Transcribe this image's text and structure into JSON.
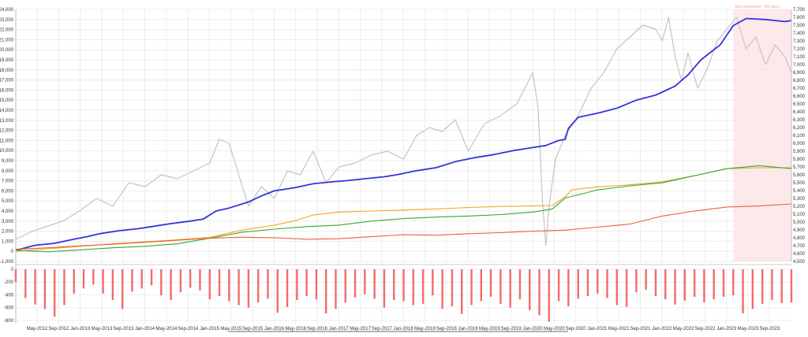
{
  "chart_data": [
    {
      "type": "line",
      "title": "",
      "xlabel": "",
      "ylabel": "",
      "x_tick_labels": [
        "May-2012",
        "Sep-2012",
        "Jan-2013",
        "May-2013",
        "Sep-2013",
        "Jan-2014",
        "May-2014",
        "Sep-2014",
        "Jan-2015",
        "May-2015",
        "Sep-2015",
        "Jan-2016",
        "May-2016",
        "Sep-2016",
        "Jan-2017",
        "May-2017",
        "Sep-2017",
        "Jan-2018",
        "May-2018",
        "Sep-2018",
        "Jan-2019",
        "May-2019",
        "Sep-2019",
        "Jan-2020",
        "May-2020",
        "Sep-2020",
        "Jan-2021",
        "May-2021",
        "Sep-2021",
        "Jan-2022",
        "May-2022",
        "Sep-2022",
        "Jan-2023",
        "May-2023",
        "Sep-2023"
      ],
      "y_left_ticks": [
        "-1,000",
        "0",
        "1,000",
        "2,000",
        "3,000",
        "4,000",
        "5,000",
        "6,000",
        "7,000",
        "8,000",
        "9,000",
        "10,000",
        "11,000",
        "12,000",
        "13,000",
        "14,000",
        "15,000",
        "16,000",
        "17,000",
        "18,000",
        "19,000",
        "20,000",
        "21,000",
        "22,000",
        "23,000",
        "24,000"
      ],
      "y_right_ticks": [
        "4,500",
        "4,600",
        "4,700",
        "4,800",
        "4,900",
        "5,000",
        "5,100",
        "5,200",
        "5,300",
        "5,400",
        "5,500",
        "5,600",
        "5,700",
        "5,800",
        "5,900",
        "6,000",
        "6,100",
        "6,200",
        "6,300",
        "6,400",
        "6,500",
        "6,600",
        "6,700",
        "6,800",
        "6,900",
        "7,000",
        "7,100",
        "7,200",
        "7,300",
        "7,400",
        "7,500",
        "7,600",
        "7,700"
      ],
      "ylim_left": [
        -1000,
        24000
      ],
      "ylim_right": [
        4500,
        7700
      ],
      "grid": true,
      "annotations": [
        {
          "text": "Max drawdown: 359 days",
          "start": "2023.1",
          "end": "2023.99",
          "color": "#fde4e6"
        }
      ],
      "series": [
        {
          "color": "#3333dd",
          "axis": "left",
          "x": [
            2012.0,
            2012.3,
            2012.6,
            2012.9,
            2013.1,
            2013.3,
            2013.6,
            2013.9,
            2014.1,
            2014.4,
            2014.7,
            2014.9,
            2015.1,
            2015.3,
            2015.6,
            2015.8,
            2016.0,
            2016.3,
            2016.6,
            2016.9,
            2017.1,
            2017.4,
            2017.7,
            2017.9,
            2018.2,
            2018.5,
            2018.8,
            2019.1,
            2019.4,
            2019.7,
            2019.9,
            2020.2,
            2020.4,
            2020.5,
            2020.55,
            2020.7,
            2021.0,
            2021.3,
            2021.6,
            2021.9,
            2022.0,
            2022.2,
            2022.4,
            2022.6,
            2022.9,
            2023.1,
            2023.3,
            2023.6,
            2023.9,
            2024.0
          ],
          "y": [
            100,
            600,
            800,
            1200,
            1450,
            1750,
            2050,
            2250,
            2450,
            2750,
            3000,
            3200,
            4000,
            4300,
            4900,
            5500,
            6000,
            6300,
            6700,
            6900,
            7000,
            7200,
            7400,
            7600,
            8000,
            8300,
            8900,
            9300,
            9600,
            10000,
            10200,
            10500,
            11000,
            11100,
            12200,
            13300,
            13700,
            14200,
            15000,
            15500,
            15800,
            16400,
            17500,
            19000,
            20500,
            22400,
            23100,
            23000,
            22800,
            22900
          ]
        },
        {
          "color": "#f5a623",
          "axis": "left",
          "x": [
            2012.0,
            2012.5,
            2013.0,
            2013.5,
            2014.0,
            2014.5,
            2015.0,
            2015.5,
            2016.0,
            2016.3,
            2016.6,
            2017.0,
            2017.5,
            2018.0,
            2018.5,
            2019.0,
            2019.5,
            2020.0,
            2020.3,
            2020.5,
            2020.6,
            2021.0,
            2021.5,
            2022.0,
            2022.5,
            2023.0,
            2023.5,
            2024.0
          ],
          "y": [
            0,
            250,
            500,
            750,
            950,
            1150,
            1400,
            2100,
            2600,
            3000,
            3600,
            3900,
            4000,
            4100,
            4200,
            4350,
            4450,
            4500,
            4550,
            5400,
            6100,
            6400,
            6600,
            6900,
            7500,
            8200,
            8300,
            8300
          ]
        },
        {
          "color": "#33aa33",
          "axis": "left",
          "x": [
            2012.0,
            2012.5,
            2013.0,
            2013.5,
            2014.0,
            2014.5,
            2015.0,
            2015.5,
            2016.0,
            2016.5,
            2017.0,
            2017.5,
            2018.0,
            2018.5,
            2019.0,
            2019.5,
            2020.0,
            2020.3,
            2020.5,
            2020.7,
            2021.0,
            2021.5,
            2022.0,
            2022.5,
            2023.0,
            2023.5,
            2024.0
          ],
          "y": [
            100,
            -50,
            150,
            350,
            500,
            750,
            1300,
            1900,
            2200,
            2450,
            2600,
            3000,
            3250,
            3400,
            3500,
            3650,
            3900,
            4200,
            5300,
            5600,
            6100,
            6500,
            6800,
            7500,
            8200,
            8500,
            8200
          ]
        },
        {
          "color": "#e8603c",
          "axis": "left",
          "x": [
            2012.0,
            2012.5,
            2013.0,
            2013.5,
            2014.0,
            2014.5,
            2015.0,
            2015.5,
            2016.0,
            2016.5,
            2017.0,
            2017.5,
            2018.0,
            2018.5,
            2019.0,
            2019.5,
            2020.0,
            2020.5,
            2021.0,
            2021.5,
            2022.0,
            2022.5,
            2023.0,
            2023.5,
            2024.0
          ],
          "y": [
            200,
            350,
            550,
            700,
            900,
            1100,
            1300,
            1400,
            1350,
            1200,
            1250,
            1450,
            1650,
            1600,
            1750,
            1850,
            2000,
            2100,
            2400,
            2700,
            3500,
            4000,
            4400,
            4500,
            4700
          ]
        },
        {
          "color": "#c4c4c4",
          "axis": "right",
          "x": [
            2012.0,
            2012.25,
            2012.5,
            2012.75,
            2013.0,
            2013.25,
            2013.5,
            2013.75,
            2014.0,
            2014.25,
            2014.5,
            2014.75,
            2015.0,
            2015.15,
            2015.3,
            2015.45,
            2015.6,
            2015.8,
            2016.0,
            2016.2,
            2016.4,
            2016.6,
            2016.8,
            2017.0,
            2017.25,
            2017.5,
            2017.75,
            2018.0,
            2018.2,
            2018.4,
            2018.6,
            2018.8,
            2019.0,
            2019.25,
            2019.5,
            2019.75,
            2020.0,
            2020.08,
            2020.15,
            2020.2,
            2020.25,
            2020.35,
            2020.5,
            2020.7,
            2020.9,
            2021.1,
            2021.3,
            2021.5,
            2021.7,
            2021.9,
            2022.0,
            2022.1,
            2022.2,
            2022.3,
            2022.4,
            2022.55,
            2022.7,
            2022.85,
            2023.0,
            2023.15,
            2023.3,
            2023.45,
            2023.6,
            2023.75,
            2023.9,
            2024.0
          ],
          "y": [
            4780,
            4880,
            4950,
            5020,
            5150,
            5300,
            5200,
            5500,
            5450,
            5600,
            5550,
            5650,
            5750,
            6050,
            6000,
            5600,
            5200,
            5450,
            5300,
            5650,
            5600,
            5900,
            5500,
            5700,
            5750,
            5850,
            5900,
            5800,
            6100,
            6200,
            6150,
            6300,
            5900,
            6250,
            6350,
            6500,
            6900,
            6450,
            5250,
            4700,
            5200,
            5800,
            6100,
            6350,
            6700,
            6900,
            7200,
            7350,
            7500,
            7450,
            7300,
            7600,
            7100,
            6800,
            7150,
            6700,
            6950,
            7300,
            7450,
            7600,
            7200,
            7350,
            7000,
            7250,
            7100,
            6900
          ]
        }
      ]
    },
    {
      "type": "bar",
      "title": "",
      "y_ticks": [
        "-800",
        "-600",
        "-400",
        "-200",
        "0"
      ],
      "ylim": [
        -850,
        0
      ],
      "color": "#f36b6b",
      "x": [
        2012.0,
        2012.15,
        2012.3,
        2012.45,
        2012.6,
        2012.75,
        2012.9,
        2013.05,
        2013.2,
        2013.35,
        2013.5,
        2013.65,
        2013.8,
        2013.95,
        2014.1,
        2014.25,
        2014.4,
        2014.55,
        2014.7,
        2014.85,
        2015.0,
        2015.15,
        2015.3,
        2015.45,
        2015.6,
        2015.75,
        2015.9,
        2016.05,
        2016.2,
        2016.35,
        2016.5,
        2016.65,
        2016.8,
        2016.95,
        2017.1,
        2017.25,
        2017.4,
        2017.55,
        2017.7,
        2017.85,
        2018.0,
        2018.15,
        2018.3,
        2018.45,
        2018.6,
        2018.75,
        2018.9,
        2019.05,
        2019.2,
        2019.35,
        2019.5,
        2019.65,
        2019.8,
        2019.95,
        2020.1,
        2020.25,
        2020.4,
        2020.55,
        2020.7,
        2020.85,
        2021.0,
        2021.15,
        2021.3,
        2021.45,
        2021.6,
        2021.75,
        2021.9,
        2022.05,
        2022.2,
        2022.35,
        2022.5,
        2022.65,
        2022.8,
        2022.95,
        2023.1,
        2023.25,
        2023.4,
        2023.55,
        2023.7,
        2023.85,
        2024.0
      ],
      "values": [
        -200,
        -450,
        -550,
        -620,
        -740,
        -560,
        -380,
        -300,
        -240,
        -380,
        -480,
        -620,
        -350,
        -300,
        -250,
        -410,
        -480,
        -360,
        -290,
        -330,
        -470,
        -420,
        -500,
        -560,
        -600,
        -520,
        -460,
        -680,
        -590,
        -480,
        -420,
        -470,
        -690,
        -620,
        -520,
        -440,
        -390,
        -460,
        -600,
        -480,
        -500,
        -560,
        -540,
        -410,
        -620,
        -580,
        -700,
        -560,
        -500,
        -430,
        -540,
        -600,
        -470,
        -640,
        -720,
        -820,
        -500,
        -580,
        -460,
        -420,
        -380,
        -450,
        -560,
        -590,
        -360,
        -320,
        -420,
        -470,
        -550,
        -490,
        -430,
        -520,
        -470,
        -430,
        -410,
        -690,
        -620,
        -540,
        -480,
        -530,
        -520
      ]
    }
  ]
}
